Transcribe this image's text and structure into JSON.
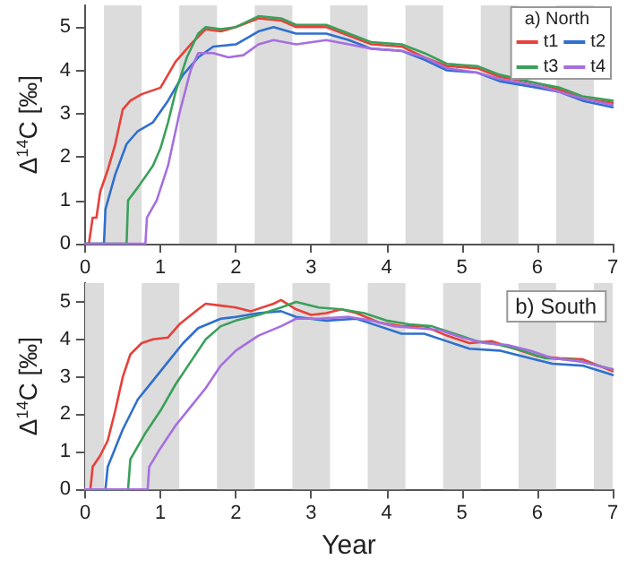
{
  "chart_data": [
    {
      "type": "line",
      "legend_title": "a) North",
      "ylabel": "Δ$^{14}$C [‰]",
      "legend": "top right",
      "grid": false,
      "marker": "none",
      "line_style": "solid",
      "xlim": [
        0,
        7
      ],
      "xticks": [
        0,
        1,
        2,
        3,
        4,
        5,
        6,
        7
      ],
      "ylim": [
        0,
        5.5
      ],
      "yticks": [
        0,
        1,
        2,
        3,
        4,
        5
      ],
      "bands": [
        {
          "axis": "x",
          "from": 0.25,
          "to": 0.75,
          "color": "#dcdcdc"
        },
        {
          "axis": "x",
          "from": 1.25,
          "to": 1.75,
          "color": "#dcdcdc"
        },
        {
          "axis": "x",
          "from": 2.25,
          "to": 2.75,
          "color": "#dcdcdc"
        },
        {
          "axis": "x",
          "from": 3.25,
          "to": 3.75,
          "color": "#dcdcdc"
        },
        {
          "axis": "x",
          "from": 4.25,
          "to": 4.75,
          "color": "#dcdcdc"
        },
        {
          "axis": "x",
          "from": 5.25,
          "to": 5.75,
          "color": "#dcdcdc"
        },
        {
          "axis": "x",
          "from": 6.25,
          "to": 6.75,
          "color": "#dcdcdc"
        }
      ],
      "series": [
        {
          "name": "t1",
          "color": "#e8403a",
          "x": [
            0,
            0.05,
            0.1,
            0.15,
            0.2,
            0.3,
            0.4,
            0.5,
            0.6,
            0.75,
            1.0,
            1.2,
            1.4,
            1.6,
            1.8,
            2.0,
            2.3,
            2.6,
            2.8,
            3.2,
            3.5,
            3.8,
            4.2,
            4.5,
            4.8,
            5.2,
            5.5,
            6.0,
            6.3,
            6.6,
            7
          ],
          "values": [
            0,
            0,
            0.6,
            0.6,
            1.2,
            1.7,
            2.3,
            3.1,
            3.3,
            3.45,
            3.6,
            4.2,
            4.6,
            4.95,
            4.9,
            5.0,
            5.2,
            5.15,
            5.0,
            5.0,
            4.8,
            4.6,
            4.55,
            4.3,
            4.1,
            4.05,
            3.85,
            3.7,
            3.55,
            3.35,
            3.25
          ]
        },
        {
          "name": "t2",
          "color": "#2f6fce",
          "x": [
            0,
            0.25,
            0.27,
            0.4,
            0.55,
            0.7,
            0.9,
            1.1,
            1.3,
            1.5,
            1.7,
            2.0,
            2.3,
            2.5,
            2.8,
            3.2,
            3.5,
            3.8,
            4.2,
            4.5,
            4.8,
            5.2,
            5.5,
            6.0,
            6.3,
            6.6,
            7
          ],
          "values": [
            0,
            0,
            0.8,
            1.6,
            2.3,
            2.6,
            2.8,
            3.3,
            3.9,
            4.3,
            4.55,
            4.6,
            4.9,
            5.0,
            4.85,
            4.85,
            4.7,
            4.5,
            4.45,
            4.25,
            4.0,
            3.95,
            3.75,
            3.6,
            3.5,
            3.3,
            3.15
          ]
        },
        {
          "name": "t3",
          "color": "#3aa05a",
          "x": [
            0,
            0.55,
            0.57,
            0.7,
            0.9,
            1.0,
            1.1,
            1.2,
            1.35,
            1.5,
            1.6,
            1.8,
            2.0,
            2.3,
            2.6,
            2.8,
            3.2,
            3.5,
            3.8,
            4.2,
            4.5,
            4.8,
            5.2,
            5.5,
            6.0,
            6.3,
            6.6,
            7
          ],
          "values": [
            0,
            0,
            1.0,
            1.3,
            1.8,
            2.2,
            2.8,
            3.5,
            4.3,
            4.85,
            5.0,
            4.95,
            5.0,
            5.25,
            5.2,
            5.05,
            5.05,
            4.85,
            4.65,
            4.6,
            4.4,
            4.15,
            4.1,
            3.9,
            3.7,
            3.6,
            3.4,
            3.3
          ]
        },
        {
          "name": "t4",
          "color": "#a66fe0",
          "x": [
            0,
            0.8,
            0.82,
            0.95,
            1.1,
            1.25,
            1.4,
            1.5,
            1.7,
            1.9,
            2.1,
            2.3,
            2.5,
            2.8,
            3.2,
            3.5,
            3.8,
            4.2,
            4.5,
            4.8,
            5.2,
            5.5,
            6.0,
            6.3,
            6.6,
            7
          ],
          "values": [
            0,
            0,
            0.6,
            1.0,
            1.8,
            3.0,
            4.0,
            4.4,
            4.4,
            4.3,
            4.35,
            4.6,
            4.7,
            4.6,
            4.7,
            4.6,
            4.5,
            4.45,
            4.3,
            4.05,
            3.95,
            3.8,
            3.65,
            3.5,
            3.35,
            3.2
          ]
        }
      ]
    },
    {
      "type": "line",
      "title": "b) South",
      "xlabel": "Year",
      "ylabel": "Δ$^{14}$C [‰]",
      "legend": false,
      "grid": false,
      "marker": "none",
      "line_style": "solid",
      "xlim": [
        0,
        7
      ],
      "xticks": [
        0,
        1,
        2,
        3,
        4,
        5,
        6,
        7
      ],
      "ylim": [
        0,
        5.5
      ],
      "yticks": [
        0,
        1,
        2,
        3,
        4,
        5
      ],
      "bands": [
        {
          "axis": "x",
          "from": 0,
          "to": 0.25,
          "color": "#dcdcdc"
        },
        {
          "axis": "x",
          "from": 0.75,
          "to": 1.25,
          "color": "#dcdcdc"
        },
        {
          "axis": "x",
          "from": 1.75,
          "to": 2.25,
          "color": "#dcdcdc"
        },
        {
          "axis": "x",
          "from": 2.75,
          "to": 3.25,
          "color": "#dcdcdc"
        },
        {
          "axis": "x",
          "from": 3.75,
          "to": 4.25,
          "color": "#dcdcdc"
        },
        {
          "axis": "x",
          "from": 4.75,
          "to": 5.25,
          "color": "#dcdcdc"
        },
        {
          "axis": "x",
          "from": 5.75,
          "to": 6.25,
          "color": "#dcdcdc"
        },
        {
          "axis": "x",
          "from": 6.75,
          "to": 7,
          "color": "#dcdcdc"
        }
      ],
      "series": [
        {
          "color": "#e8403a",
          "x": [
            0,
            0.07,
            0.1,
            0.2,
            0.3,
            0.4,
            0.5,
            0.6,
            0.75,
            0.9,
            1.1,
            1.25,
            1.5,
            1.6,
            1.8,
            2.0,
            2.2,
            2.5,
            2.6,
            2.8,
            3.0,
            3.2,
            3.4,
            3.6,
            3.9,
            4.2,
            4.5,
            4.8,
            5.1,
            5.4,
            5.7,
            6.0,
            6.3,
            6.6,
            7
          ],
          "values": [
            0,
            0,
            0.6,
            0.9,
            1.3,
            2.1,
            3.0,
            3.6,
            3.9,
            4.0,
            4.05,
            4.4,
            4.8,
            4.95,
            4.9,
            4.85,
            4.75,
            4.95,
            5.05,
            4.8,
            4.65,
            4.7,
            4.8,
            4.7,
            4.45,
            4.35,
            4.35,
            4.1,
            3.9,
            3.95,
            3.75,
            3.55,
            3.5,
            3.47,
            3.15
          ]
        },
        {
          "color": "#2f6fce",
          "x": [
            0,
            0.27,
            0.3,
            0.5,
            0.7,
            0.9,
            1.1,
            1.3,
            1.5,
            1.8,
            2.0,
            2.3,
            2.6,
            2.8,
            3.2,
            3.6,
            3.9,
            4.2,
            4.5,
            4.8,
            5.1,
            5.5,
            5.9,
            6.2,
            6.6,
            7
          ],
          "values": [
            0,
            0,
            0.6,
            1.6,
            2.4,
            2.9,
            3.4,
            3.9,
            4.3,
            4.55,
            4.6,
            4.7,
            4.75,
            4.6,
            4.5,
            4.55,
            4.35,
            4.15,
            4.15,
            3.95,
            3.75,
            3.7,
            3.5,
            3.35,
            3.3,
            3.05
          ]
        },
        {
          "color": "#3aa05a",
          "x": [
            0,
            0.57,
            0.6,
            0.8,
            1.0,
            1.2,
            1.4,
            1.6,
            1.8,
            2.0,
            2.3,
            2.6,
            2.8,
            3.1,
            3.4,
            3.7,
            4.0,
            4.3,
            4.6,
            4.9,
            5.2,
            5.5,
            5.8,
            6.1,
            6.5,
            7
          ],
          "values": [
            0,
            0,
            0.8,
            1.5,
            2.1,
            2.8,
            3.4,
            4.0,
            4.35,
            4.5,
            4.65,
            4.85,
            5.0,
            4.85,
            4.8,
            4.7,
            4.5,
            4.4,
            4.35,
            4.15,
            3.95,
            3.85,
            3.7,
            3.5,
            3.45,
            3.2
          ]
        },
        {
          "color": "#a66fe0",
          "x": [
            0,
            0.83,
            0.85,
            1.0,
            1.2,
            1.4,
            1.6,
            1.8,
            2.0,
            2.3,
            2.6,
            2.8,
            3.1,
            3.5,
            3.8,
            4.1,
            4.4,
            4.7,
            5.0,
            5.3,
            5.6,
            5.9,
            6.2,
            6.6,
            7
          ],
          "values": [
            0,
            0,
            0.6,
            1.1,
            1.7,
            2.2,
            2.7,
            3.3,
            3.7,
            4.1,
            4.35,
            4.55,
            4.55,
            4.6,
            4.5,
            4.35,
            4.3,
            4.25,
            4.05,
            3.9,
            3.85,
            3.7,
            3.5,
            3.4,
            3.2
          ]
        }
      ]
    }
  ]
}
